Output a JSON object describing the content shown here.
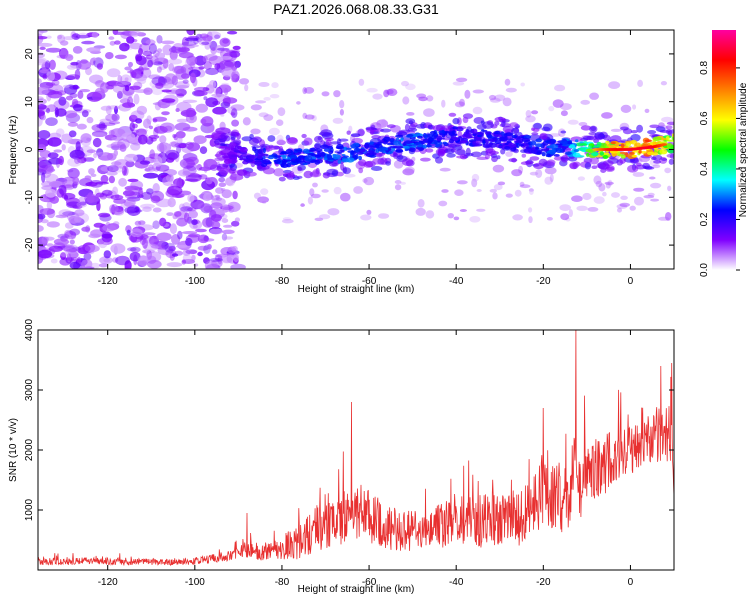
{
  "figure": {
    "title": "PAZ1.2026.068.08.33.G31"
  },
  "chart_data": [
    {
      "type": "heatmap",
      "xlabel": "Height of straight line (km)",
      "ylabel": "Frequency (Hz)",
      "xlim": [
        -136,
        10
      ],
      "ylim": [
        -25,
        25
      ],
      "x_ticks": [
        -120,
        -100,
        -80,
        -60,
        -40,
        -20,
        0
      ],
      "y_ticks": [
        -20,
        -10,
        0,
        10,
        20
      ],
      "grid": false,
      "noise_region_x": [
        -136,
        -90
      ],
      "signal_region_x": [
        -95,
        10
      ],
      "colorbar": {
        "label": "Normalized spectral amplitude",
        "range": [
          0.0,
          0.95
        ],
        "ticks": [
          0.0,
          0.2,
          0.4,
          0.6,
          0.8
        ],
        "colormap": [
          "#ffffff",
          "#8000ff",
          "#0000ff",
          "#00ffff",
          "#00ff00",
          "#ffff00",
          "#ff8000",
          "#ff0000",
          "#ff00a0"
        ]
      },
      "ridge": {
        "x": [
          -95,
          -90,
          -85,
          -80,
          -75,
          -70,
          -65,
          -60,
          -55,
          -50,
          -45,
          -40,
          -35,
          -30,
          -25,
          -20,
          -15,
          -10,
          -5,
          0,
          5,
          10
        ],
        "freq": [
          -1,
          -1,
          -1.5,
          -2,
          -1.5,
          -1,
          -1,
          0,
          1,
          1.5,
          2,
          3,
          2.5,
          2,
          1.5,
          0,
          0.5,
          0,
          0,
          0,
          0.5,
          1.5
        ],
        "amplitude": [
          0.1,
          0.18,
          0.25,
          0.3,
          0.28,
          0.3,
          0.3,
          0.28,
          0.3,
          0.3,
          0.28,
          0.25,
          0.25,
          0.25,
          0.25,
          0.28,
          0.3,
          0.5,
          0.75,
          0.8,
          0.8,
          0.6
        ]
      }
    },
    {
      "type": "line",
      "xlabel": "Height of straight line (km)",
      "ylabel": "SNR (10 * v/v)",
      "xlim": [
        -136,
        10
      ],
      "ylim": [
        0,
        4000
      ],
      "x_ticks": [
        -120,
        -100,
        -80,
        -60,
        -40,
        -20,
        0
      ],
      "y_ticks": [
        1000,
        2000,
        3000,
        4000
      ],
      "grid": false,
      "color": "#e83030",
      "series": [
        {
          "name": "SNR",
          "x": [
            -136,
            -130,
            -125,
            -120,
            -115,
            -110,
            -105,
            -100,
            -95,
            -90,
            -88,
            -85,
            -80,
            -75,
            -72,
            -70,
            -68,
            -65,
            -63,
            -60,
            -57,
            -55,
            -52,
            -50,
            -47,
            -45,
            -43,
            -40,
            -37,
            -35,
            -32,
            -30,
            -27,
            -25,
            -22,
            -20,
            -18,
            -15,
            -13,
            -12,
            -10,
            -8,
            -5,
            -3,
            0,
            3,
            5,
            7,
            9,
            10
          ],
          "base": [
            150,
            140,
            150,
            140,
            130,
            140,
            130,
            150,
            200,
            280,
            350,
            300,
            380,
            480,
            700,
            750,
            700,
            950,
            1000,
            900,
            750,
            700,
            650,
            650,
            600,
            700,
            750,
            800,
            850,
            800,
            850,
            800,
            900,
            850,
            1100,
            1450,
            1300,
            1100,
            1700,
            1350,
            1600,
            1650,
            1800,
            1900,
            2000,
            2100,
            2200,
            2300,
            2250,
            1500
          ],
          "amp": [
            70,
            60,
            60,
            60,
            55,
            55,
            55,
            60,
            80,
            100,
            150,
            140,
            200,
            320,
            380,
            400,
            420,
            450,
            500,
            450,
            400,
            380,
            350,
            350,
            350,
            380,
            400,
            420,
            450,
            450,
            450,
            430,
            450,
            500,
            550,
            650,
            600,
            600,
            700,
            600,
            600,
            550,
            500,
            450,
            400,
            400,
            450,
            500,
            550,
            500
          ]
        }
      ],
      "peaks": [
        {
          "x": -88,
          "y": 950
        },
        {
          "x": -64,
          "y": 2800
        },
        {
          "x": -20,
          "y": 2700
        },
        {
          "x": -12.5,
          "y": 4000
        },
        {
          "x": 7,
          "y": 3400
        },
        {
          "x": 9.5,
          "y": 3450
        }
      ]
    }
  ]
}
